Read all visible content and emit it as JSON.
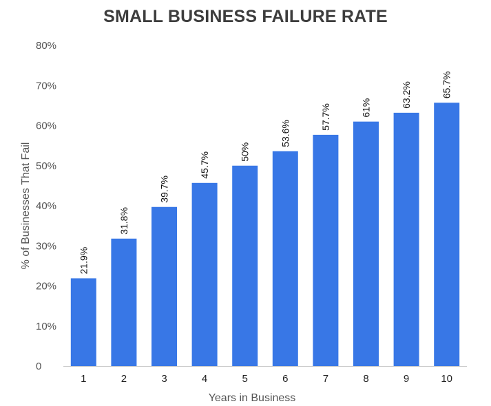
{
  "chart_data": {
    "type": "bar",
    "title": "SMALL BUSINESS FAILURE RATE",
    "xlabel": "Years in Business",
    "ylabel": "% of Businesses That Fail",
    "categories": [
      "1",
      "2",
      "3",
      "4",
      "5",
      "6",
      "7",
      "8",
      "9",
      "10"
    ],
    "values": [
      21.9,
      31.8,
      39.7,
      45.7,
      50,
      53.6,
      57.7,
      61,
      63.2,
      65.7
    ],
    "data_labels": [
      "21.9%",
      "31.8%",
      "39.7%",
      "45.7%",
      "50%",
      "53.6%",
      "57.7%",
      "61%",
      "63.2%",
      "65.7%"
    ],
    "ylim": [
      0,
      80
    ],
    "yticks": [
      0,
      10,
      20,
      30,
      40,
      50,
      60,
      70,
      80
    ],
    "ytick_labels": [
      "0",
      "10%",
      "20%",
      "30%",
      "40%",
      "50%",
      "60%",
      "70%",
      "80%"
    ],
    "grid": false,
    "legend": "none",
    "bar_color": "#3877e6"
  }
}
